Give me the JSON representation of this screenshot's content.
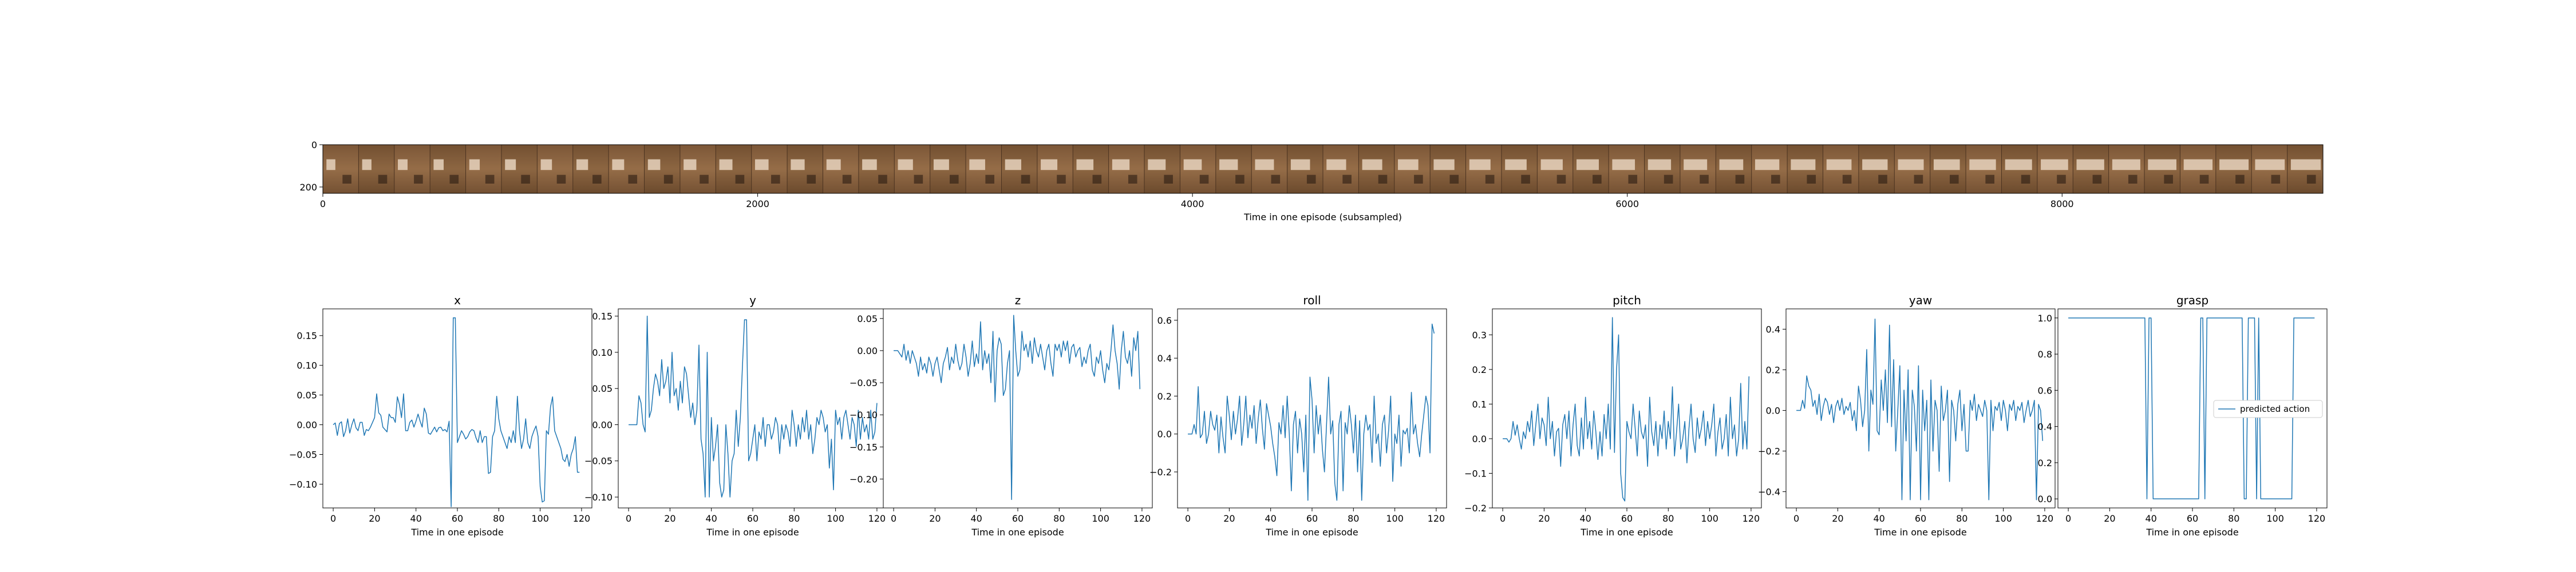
{
  "filmstrip": {
    "xlabel": "Time in one episode (subsampled)",
    "xticks": [
      "0",
      "2000",
      "4000",
      "6000",
      "8000"
    ],
    "yticks": [
      "0",
      "200"
    ],
    "frame_count": 56,
    "extent_x": [
      0,
      9200
    ],
    "extent_y": [
      0,
      230
    ]
  },
  "legend": {
    "label": "predicted action"
  },
  "colors": {
    "line": "#1f77b4",
    "axes": "#000000",
    "background": "#ffffff"
  },
  "chart_data": [
    {
      "type": "line",
      "title": "x",
      "xlabel": "Time in one episode",
      "ylabel": "",
      "xlim": [
        -5,
        125
      ],
      "ylim": [
        -0.14,
        0.195
      ],
      "xticks": [
        0,
        20,
        40,
        60,
        80,
        100,
        120
      ],
      "yticks": [
        -0.1,
        -0.05,
        0.0,
        0.05,
        0.1,
        0.15
      ],
      "ytick_labels": [
        "−0.10",
        "−0.05",
        "0.00",
        "0.05",
        "0.10",
        "0.15"
      ],
      "series": [
        {
          "values": [
            0.0,
            0.003,
            -0.018,
            0.002,
            0.005,
            -0.02,
            -0.01,
            0.01,
            -0.014,
            0.0,
            0.01,
            -0.005,
            -0.01,
            0.004,
            0.004,
            -0.018,
            -0.008,
            -0.01,
            -0.004,
            0.004,
            0.012,
            0.052,
            0.02,
            0.016,
            -0.004,
            -0.008,
            -0.012,
            0.018,
            0.012,
            0.012,
            0.004,
            0.047,
            0.034,
            0.012,
            0.052,
            -0.01,
            -0.01,
            0.004,
            0.008,
            -0.004,
            0.006,
            0.018,
            0.006,
            -0.004,
            0.028,
            0.018,
            -0.014,
            -0.016,
            -0.01,
            -0.004,
            -0.012,
            -0.005,
            -0.004,
            -0.01,
            -0.008,
            -0.012,
            0.006,
            -0.138,
            0.18,
            0.18,
            -0.03,
            -0.02,
            -0.01,
            -0.016,
            -0.024,
            -0.02,
            -0.012,
            -0.008,
            -0.01,
            -0.022,
            -0.03,
            -0.01,
            -0.03,
            -0.02,
            -0.02,
            -0.082,
            -0.08,
            -0.02,
            -0.01,
            0.048,
            0.01,
            -0.01,
            -0.02,
            -0.03,
            -0.04,
            -0.02,
            -0.03,
            -0.01,
            -0.03,
            0.048,
            -0.01,
            -0.04,
            -0.024,
            0.01,
            -0.03,
            -0.04,
            -0.02,
            -0.01,
            -0.002,
            -0.02,
            -0.104,
            -0.13,
            -0.128,
            -0.01,
            -0.016,
            0.03,
            0.047,
            -0.01,
            -0.02,
            -0.03,
            -0.04,
            -0.058,
            -0.062,
            -0.05,
            -0.07,
            -0.05,
            -0.04,
            -0.02,
            -0.08,
            -0.08
          ]
        }
      ]
    },
    {
      "type": "line",
      "title": "y",
      "xlabel": "Time in one episode",
      "ylabel": "",
      "xlim": [
        -5,
        125
      ],
      "ylim": [
        -0.115,
        0.16
      ],
      "xticks": [
        0,
        20,
        40,
        60,
        80,
        100,
        120
      ],
      "yticks": [
        -0.1,
        -0.05,
        0.0,
        0.05,
        0.1,
        0.15
      ],
      "ytick_labels": [
        "−0.10",
        "−0.05",
        "0.00",
        "0.05",
        "0.10",
        "0.15"
      ],
      "series": [
        {
          "values": [
            0.0,
            0.0,
            0.0,
            0.0,
            0.0,
            0.04,
            0.03,
            0.0,
            -0.01,
            0.15,
            0.01,
            0.02,
            0.05,
            0.07,
            0.06,
            0.04,
            0.09,
            0.05,
            0.06,
            0.08,
            0.03,
            0.1,
            0.04,
            0.05,
            0.02,
            0.06,
            0.03,
            0.08,
            0.07,
            0.04,
            0.01,
            0.03,
            0.0,
            0.02,
            0.11,
            -0.02,
            -0.04,
            -0.1,
            0.1,
            -0.1,
            0.01,
            -0.05,
            -0.03,
            0.0,
            -0.08,
            -0.1,
            -0.09,
            0.0,
            -0.04,
            -0.1,
            -0.05,
            -0.04,
            0.02,
            -0.03,
            0.01,
            0.08,
            0.145,
            0.145,
            -0.05,
            -0.04,
            -0.02,
            0.0,
            -0.05,
            -0.01,
            -0.02,
            0.01,
            -0.03,
            0.0,
            0.0,
            -0.02,
            -0.01,
            0.01,
            0.0,
            -0.04,
            0.0,
            -0.02,
            0.0,
            -0.01,
            -0.03,
            0.02,
            0.0,
            -0.03,
            0.0,
            -0.02,
            0.01,
            -0.01,
            0.02,
            -0.02,
            0.0,
            -0.04,
            -0.02,
            0.01,
            0.0,
            0.02,
            0.01,
            -0.01,
            0.0,
            -0.06,
            -0.02,
            -0.09,
            0.02,
            0.0,
            0.01,
            -0.02,
            0.01,
            0.02,
            0.0,
            -0.02,
            0.01,
            0.0,
            -0.03,
            0.02,
            -0.02,
            0.01,
            -0.01,
            0.0,
            -0.02,
            0.02,
            -0.02,
            -0.01,
            0.03
          ]
        }
      ]
    },
    {
      "type": "line",
      "title": "z",
      "xlabel": "Time in one episode",
      "ylabel": "",
      "xlim": [
        -5,
        125
      ],
      "ylim": [
        -0.245,
        0.065
      ],
      "xticks": [
        0,
        20,
        40,
        60,
        80,
        100,
        120
      ],
      "yticks": [
        -0.2,
        -0.15,
        -0.1,
        -0.05,
        0.0,
        0.05
      ],
      "ytick_labels": [
        "−0.20",
        "−0.15",
        "−0.10",
        "−0.05",
        "0.00",
        "0.05"
      ],
      "series": [
        {
          "values": [
            0.0,
            0.0,
            0.0,
            -0.005,
            -0.01,
            0.01,
            -0.015,
            0.0,
            -0.02,
            0.0,
            -0.01,
            -0.02,
            -0.04,
            -0.01,
            -0.03,
            -0.02,
            -0.035,
            -0.01,
            -0.02,
            -0.04,
            -0.02,
            -0.01,
            -0.03,
            -0.05,
            -0.02,
            -0.01,
            0.005,
            -0.03,
            -0.01,
            -0.02,
            0.01,
            -0.015,
            -0.03,
            -0.02,
            0.01,
            -0.01,
            -0.04,
            -0.02,
            0.015,
            -0.025,
            -0.005,
            -0.02,
            0.045,
            -0.03,
            0.0,
            -0.02,
            -0.005,
            -0.05,
            0.03,
            -0.08,
            0.0,
            0.02,
            0.01,
            -0.07,
            -0.06,
            -0.02,
            0.0,
            -0.232,
            0.055,
            0.0,
            -0.04,
            -0.03,
            0.03,
            0.0,
            0.01,
            -0.01,
            0.015,
            -0.02,
            0.02,
            0.0,
            -0.01,
            0.01,
            -0.01,
            -0.03,
            0.0,
            0.01,
            -0.02,
            -0.04,
            0.01,
            0.0,
            0.01,
            -0.01,
            0.015,
            0.0,
            0.015,
            -0.02,
            0.005,
            0.01,
            -0.01,
            0.0,
            0.005,
            -0.025,
            -0.01,
            -0.02,
            0.0,
            0.01,
            -0.03,
            -0.04,
            -0.01,
            -0.02,
            0.0,
            -0.03,
            -0.05,
            -0.02,
            -0.03,
            0.0,
            0.04,
            0.0,
            -0.02,
            -0.06,
            0.0,
            0.03,
            -0.01,
            -0.02,
            0.0,
            -0.04,
            0.02,
            0.0,
            0.03,
            -0.06
          ]
        }
      ]
    },
    {
      "type": "line",
      "title": "roll",
      "xlabel": "Time in one episode",
      "ylabel": "",
      "xlim": [
        -5,
        125
      ],
      "ylim": [
        -0.39,
        0.66
      ],
      "xticks": [
        0,
        20,
        40,
        60,
        80,
        100,
        120
      ],
      "yticks": [
        -0.2,
        0.0,
        0.2,
        0.4,
        0.6
      ],
      "ytick_labels": [
        "−0.2",
        "0.0",
        "0.2",
        "0.4",
        "0.6"
      ],
      "series": [
        {
          "values": [
            0.0,
            0.0,
            0.0,
            0.05,
            0.0,
            0.25,
            -0.02,
            0.0,
            0.12,
            -0.05,
            0.0,
            0.12,
            0.05,
            0.02,
            0.1,
            -0.1,
            0.09,
            -0.02,
            -0.1,
            0.2,
            0.1,
            -0.03,
            0.12,
            0.0,
            0.08,
            0.2,
            -0.06,
            0.05,
            0.2,
            -0.02,
            0.1,
            0.03,
            0.15,
            -0.05,
            0.08,
            0.18,
            0.03,
            -0.08,
            0.16,
            0.1,
            0.04,
            -0.05,
            -0.12,
            -0.22,
            0.06,
            0.0,
            0.15,
            -0.02,
            0.2,
            0.0,
            -0.3,
            0.05,
            0.12,
            -0.1,
            0.08,
            0.0,
            -0.2,
            0.1,
            -0.35,
            0.3,
            0.18,
            -0.1,
            0.15,
            0.0,
            0.1,
            -0.08,
            -0.2,
            0.05,
            0.3,
            0.0,
            0.07,
            -0.26,
            -0.35,
            0.05,
            0.12,
            -0.3,
            0.06,
            0.0,
            0.15,
            0.05,
            -0.1,
            0.1,
            -0.2,
            0.07,
            -0.35,
            0.0,
            0.1,
            0.02,
            0.05,
            -0.15,
            0.2,
            -0.05,
            0.0,
            -0.17,
            0.05,
            0.1,
            -0.1,
            0.02,
            0.2,
            -0.25,
            0.0,
            -0.05,
            0.1,
            -0.17,
            0.02,
            0.0,
            0.03,
            -0.1,
            0.22,
            0.0,
            0.05,
            -0.05,
            -0.12,
            0.0,
            0.1,
            0.2,
            0.15,
            -0.1,
            0.58,
            0.53
          ]
        }
      ]
    },
    {
      "type": "line",
      "title": "pitch",
      "xlabel": "Time in one episode",
      "ylabel": "",
      "xlim": [
        -5,
        125
      ],
      "ylim": [
        -0.2,
        0.375
      ],
      "xticks": [
        0,
        20,
        40,
        60,
        80,
        100,
        120
      ],
      "yticks": [
        -0.2,
        -0.1,
        0.0,
        0.1,
        0.2,
        0.3
      ],
      "ytick_labels": [
        "−0.2",
        "−0.1",
        "0.0",
        "0.1",
        "0.2",
        "0.3"
      ],
      "series": [
        {
          "values": [
            0.0,
            0.0,
            0.0,
            -0.01,
            0.0,
            0.05,
            0.01,
            0.04,
            0.0,
            -0.03,
            0.02,
            0.0,
            0.05,
            0.02,
            0.08,
            -0.02,
            0.04,
            0.1,
            0.0,
            0.06,
            0.04,
            -0.02,
            0.12,
            0.0,
            0.05,
            -0.05,
            0.02,
            0.03,
            -0.08,
            0.04,
            0.07,
            0.0,
            0.08,
            -0.05,
            0.04,
            0.1,
            -0.02,
            -0.05,
            0.06,
            -0.03,
            0.12,
            0.0,
            0.05,
            -0.03,
            0.08,
            0.02,
            -0.06,
            0.02,
            -0.05,
            0.07,
            0.0,
            0.1,
            -0.03,
            0.35,
            -0.04,
            0.2,
            0.3,
            -0.1,
            -0.17,
            -0.18,
            0.05,
            0.02,
            0.0,
            0.1,
            0.03,
            -0.05,
            0.08,
            0.02,
            0.0,
            0.04,
            -0.08,
            0.12,
            0.02,
            -0.02,
            0.05,
            -0.05,
            0.04,
            0.0,
            0.08,
            -0.03,
            0.05,
            0.0,
            0.15,
            -0.05,
            0.02,
            0.1,
            -0.03,
            0.0,
            0.05,
            -0.07,
            0.03,
            0.1,
            0.0,
            -0.04,
            0.06,
            0.0,
            0.03,
            0.08,
            -0.02,
            0.05,
            0.0,
            0.04,
            0.1,
            -0.05,
            0.02,
            0.06,
            -0.03,
            0.0,
            0.07,
            -0.05,
            0.12,
            0.0,
            0.04,
            -0.05,
            0.0,
            0.16,
            -0.03,
            0.05,
            -0.03,
            0.18
          ]
        }
      ]
    },
    {
      "type": "line",
      "title": "yaw",
      "xlabel": "Time in one episode",
      "ylabel": "",
      "xlim": [
        -5,
        125
      ],
      "ylim": [
        -0.48,
        0.5
      ],
      "xticks": [
        0,
        20,
        40,
        60,
        80,
        100,
        120
      ],
      "yticks": [
        -0.4,
        -0.2,
        0.0,
        0.2,
        0.4
      ],
      "ytick_labels": [
        "−0.4",
        "−0.2",
        "0.0",
        "0.2",
        "0.4"
      ],
      "series": [
        {
          "values": [
            0.0,
            0.0,
            0.0,
            0.05,
            0.01,
            0.17,
            0.12,
            0.1,
            0.02,
            0.05,
            -0.02,
            0.08,
            -0.05,
            0.02,
            0.06,
            0.04,
            -0.02,
            0.03,
            -0.06,
            0.02,
            0.05,
            0.0,
            0.06,
            -0.02,
            0.02,
            0.0,
            0.04,
            -0.05,
            0.0,
            -0.1,
            0.12,
            0.05,
            -0.08,
            0.0,
            0.3,
            -0.2,
            0.1,
            0.03,
            0.45,
            -0.1,
            -0.12,
            0.15,
            0.0,
            0.2,
            -0.06,
            0.42,
            -0.08,
            0.25,
            -0.2,
            0.0,
            0.22,
            -0.44,
            0.1,
            -0.15,
            0.2,
            -0.44,
            0.1,
            0.02,
            -0.2,
            0.22,
            -0.44,
            0.1,
            -0.1,
            0.05,
            -0.44,
            0.15,
            -0.2,
            0.05,
            0.0,
            -0.3,
            0.12,
            -0.05,
            0.0,
            0.1,
            -0.35,
            0.05,
            0.0,
            -0.15,
            0.03,
            0.1,
            -0.1,
            0.03,
            -0.2,
            -0.2,
            0.05,
            0.0,
            0.08,
            -0.05,
            0.03,
            0.0,
            -0.03,
            0.05,
            0.0,
            -0.44,
            0.05,
            -0.1,
            0.02,
            0.0,
            0.04,
            -0.05,
            0.05,
            0.0,
            -0.1,
            0.03,
            0.0,
            0.05,
            -0.05,
            0.02,
            0.0,
            0.04,
            -0.06,
            0.0,
            0.05,
            -0.03,
            0.0,
            0.05,
            -0.44,
            0.03,
            0.0,
            -0.15
          ]
        }
      ]
    },
    {
      "type": "line",
      "title": "grasp",
      "xlabel": "Time in one episode",
      "ylabel": "",
      "xlim": [
        -5,
        125
      ],
      "ylim": [
        -0.05,
        1.05
      ],
      "xticks": [
        0,
        20,
        40,
        60,
        80,
        100,
        120
      ],
      "yticks": [
        0.0,
        0.2,
        0.4,
        0.6,
        0.8,
        1.0
      ],
      "ytick_labels": [
        "0.0",
        "0.2",
        "0.4",
        "0.6",
        "0.8",
        "1.0"
      ],
      "legend": "predicted action",
      "series": [
        {
          "name": "predicted action",
          "values": [
            1,
            1,
            1,
            1,
            1,
            1,
            1,
            1,
            1,
            1,
            1,
            1,
            1,
            1,
            1,
            1,
            1,
            1,
            1,
            1,
            1,
            1,
            1,
            1,
            1,
            1,
            1,
            1,
            1,
            1,
            1,
            1,
            1,
            1,
            1,
            1,
            1,
            1,
            0,
            1,
            1,
            0,
            0,
            0,
            0,
            0,
            0,
            0,
            0,
            0,
            0,
            0,
            0,
            0,
            0,
            0,
            0,
            0,
            0,
            0,
            0,
            0,
            0,
            0,
            1,
            1,
            0,
            1,
            1,
            1,
            1,
            1,
            1,
            1,
            1,
            1,
            1,
            1,
            1,
            1,
            1,
            1,
            1,
            1,
            1,
            0,
            0,
            1,
            1,
            1,
            1,
            0,
            1,
            0,
            0,
            0,
            0,
            0,
            0,
            0,
            0,
            0,
            0,
            0,
            0,
            0,
            0,
            0,
            0,
            1,
            1,
            1,
            1,
            1,
            1,
            1,
            1,
            1,
            1,
            1
          ]
        }
      ]
    }
  ]
}
